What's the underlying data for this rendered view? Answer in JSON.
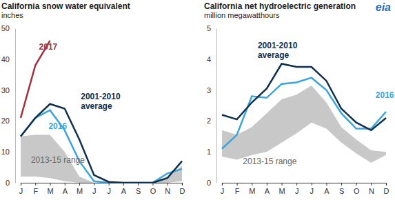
{
  "logo": "eia",
  "chart_data": [
    {
      "type": "line",
      "title": "California snow water equivalent",
      "subtitle": "inches",
      "categories": [
        "J",
        "F",
        "M",
        "A",
        "M",
        "J",
        "J",
        "A",
        "S",
        "O",
        "N",
        "D"
      ],
      "ylim": [
        0,
        50
      ],
      "yticks": [
        0,
        10,
        20,
        30,
        40,
        50
      ],
      "grid": false,
      "series": [
        {
          "name": "2017",
          "color": "#a3303f",
          "values": [
            21,
            38,
            46,
            null,
            null,
            null,
            null,
            null,
            null,
            null,
            null,
            null
          ]
        },
        {
          "name": "2001-2010 average",
          "color": "#0f2f4f",
          "values": [
            15,
            21,
            25.5,
            24,
            14,
            2.5,
            0.3,
            0,
            0,
            0,
            1.5,
            7
          ]
        },
        {
          "name": "2016",
          "color": "#3ba3dd",
          "values": [
            15,
            21,
            23.5,
            17,
            7,
            0.5,
            0,
            0,
            0,
            0,
            3,
            4.5
          ]
        },
        {
          "name": "2013-15 range",
          "type": "area",
          "color": "#c8c8c8",
          "low": [
            2,
            2,
            1.5,
            0.5,
            0,
            0,
            0,
            0,
            0,
            0,
            0,
            0.5
          ],
          "high": [
            15,
            15.5,
            15.5,
            10,
            2,
            0,
            0,
            0,
            0,
            0,
            2,
            5.5
          ]
        }
      ]
    },
    {
      "type": "line",
      "title": "California net hydroelectric generation",
      "subtitle": "million megawatthours",
      "categories": [
        "J",
        "F",
        "M",
        "A",
        "M",
        "J",
        "J",
        "A",
        "S",
        "O",
        "N",
        "D"
      ],
      "ylim": [
        0,
        5
      ],
      "yticks": [
        0,
        1,
        2,
        3,
        4,
        5
      ],
      "grid": false,
      "series": [
        {
          "name": "2001-2010 average",
          "color": "#0f2f4f",
          "values": [
            2.2,
            2.05,
            2.6,
            3.05,
            3.85,
            3.75,
            3.75,
            3.3,
            2.4,
            1.95,
            1.7,
            2.1
          ]
        },
        {
          "name": "2016",
          "color": "#3ba3dd",
          "values": [
            1.1,
            1.55,
            2.8,
            2.75,
            3.2,
            3.25,
            3.4,
            3.0,
            2.25,
            1.75,
            1.75,
            2.3
          ]
        },
        {
          "name": "2013-15 range",
          "type": "area",
          "color": "#c8c8c8",
          "low": [
            0.85,
            0.75,
            0.9,
            1.0,
            1.3,
            1.6,
            1.95,
            1.75,
            1.3,
            0.95,
            0.65,
            0.9
          ],
          "high": [
            1.7,
            1.55,
            1.8,
            2.25,
            2.7,
            2.85,
            3.15,
            2.6,
            1.8,
            1.4,
            1.05,
            1.0
          ]
        }
      ]
    }
  ]
}
